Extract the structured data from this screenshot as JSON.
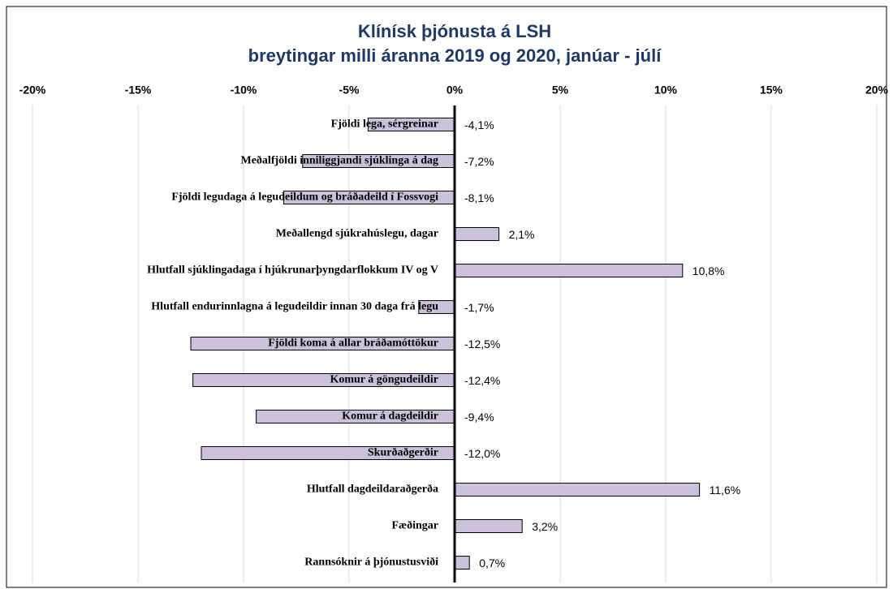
{
  "chart_data": {
    "type": "bar",
    "orientation": "horizontal",
    "title": "Klínísk þjónusta á LSH",
    "subtitle": "breytingar milli áranna 2019 og 2020,  janúar - júlí",
    "categories": [
      "Fjöldi lega, sérgreinar",
      "Meðalfjöldi inniliggjandi sjúklinga á dag",
      "Fjöldi legudaga á legudeildum og bráðadeild í Fossvogi",
      "Meðallengd sjúkrahúslegu, dagar",
      "Hlutfall sjúklingadaga í hjúkrunarþyngdarflokkum IV og V",
      "Hlutfall endurinnlagna á legudeildir innan 30 daga frá legu",
      "Fjöldi koma á allar bráðamóttökur",
      "Komur á göngudeildir",
      "Komur á dagdeildir",
      "Skurðaðgerðir",
      "Hlutfall dagdeildaraðgerða",
      "Fæðingar",
      "Rannsóknir á þjónustusviði"
    ],
    "values": [
      -4.1,
      -7.2,
      -8.1,
      2.1,
      10.8,
      -1.7,
      -12.5,
      -12.4,
      -9.4,
      -12.0,
      11.6,
      3.2,
      0.7
    ],
    "value_labels": [
      "-4,1%",
      "-7,2%",
      "-8,1%",
      "2,1%",
      "10,8%",
      "-1,7%",
      "-12,5%",
      "-12,4%",
      "-9,4%",
      "-12,0%",
      "11,6%",
      "3,2%",
      "0,7%"
    ],
    "color": "#ccc0da",
    "xlim": [
      -20,
      20
    ],
    "xticks": [
      {
        "value": -20,
        "label": "-20%"
      },
      {
        "value": -15,
        "label": "-15%"
      },
      {
        "value": -10,
        "label": "-10%"
      },
      {
        "value": -5,
        "label": "-5%"
      },
      {
        "value": 0,
        "label": "0%"
      },
      {
        "value": 5,
        "label": "5%"
      },
      {
        "value": 10,
        "label": "10%"
      },
      {
        "value": 15,
        "label": "15%"
      },
      {
        "value": 20,
        "label": "20%"
      }
    ],
    "grid": true
  }
}
